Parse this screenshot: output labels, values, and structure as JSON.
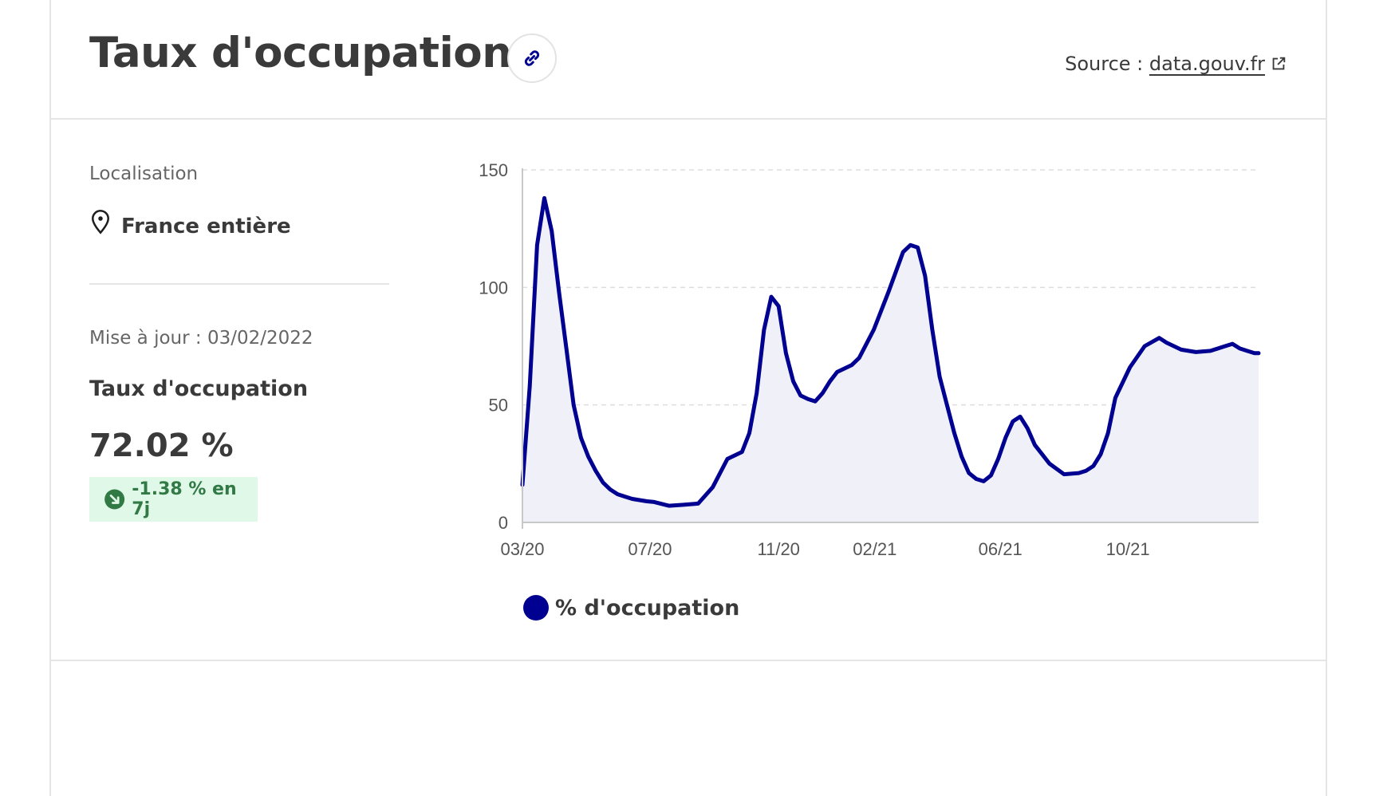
{
  "header": {
    "title": "Taux d'occupation",
    "source_prefix": "Source :",
    "source_link": "data.gouv.fr"
  },
  "sidebar": {
    "location_label": "Localisation",
    "location_value": "France entière",
    "update_text": "Mise à jour : 03/02/2022",
    "metric_name": "Taux d'occupation",
    "metric_value": "72.02 %",
    "trend_text": "-1.38 % en 7j"
  },
  "icons": {
    "link": "link-icon",
    "external": "external-link-icon",
    "location": "map-pin-icon",
    "trend": "arrow-down-right-circle-icon"
  },
  "colors": {
    "series": "#000091",
    "area": "#eff0f8",
    "trend_bg": "#e0f8e8",
    "trend_fg": "#327a45"
  },
  "chart_data": {
    "type": "area",
    "title": "",
    "xlabel": "",
    "ylabel": "",
    "ylim": [
      0,
      150
    ],
    "yticks": [
      0,
      50,
      100,
      150
    ],
    "xticks": [
      "03/20",
      "07/20",
      "11/20",
      "02/21",
      "06/21",
      "10/21"
    ],
    "grid": "horizontal dashed",
    "legend": "bottom",
    "series": [
      {
        "name": "% d'occupation",
        "x": [
          "2020-03-01",
          "2020-03-08",
          "2020-03-15",
          "2020-03-22",
          "2020-03-29",
          "2020-04-05",
          "2020-04-12",
          "2020-04-19",
          "2020-04-26",
          "2020-05-03",
          "2020-05-10",
          "2020-05-17",
          "2020-05-24",
          "2020-05-31",
          "2020-06-07",
          "2020-06-14",
          "2020-06-21",
          "2020-06-28",
          "2020-07-05",
          "2020-07-19",
          "2020-08-02",
          "2020-08-16",
          "2020-08-30",
          "2020-09-13",
          "2020-09-27",
          "2020-10-04",
          "2020-10-11",
          "2020-10-18",
          "2020-10-25",
          "2020-11-01",
          "2020-11-08",
          "2020-11-15",
          "2020-11-22",
          "2020-11-29",
          "2020-12-06",
          "2020-12-13",
          "2020-12-20",
          "2020-12-27",
          "2021-01-03",
          "2021-01-10",
          "2021-01-17",
          "2021-01-31",
          "2021-02-14",
          "2021-02-28",
          "2021-03-07",
          "2021-03-14",
          "2021-03-21",
          "2021-03-28",
          "2021-04-04",
          "2021-04-11",
          "2021-04-18",
          "2021-04-25",
          "2021-05-02",
          "2021-05-09",
          "2021-05-16",
          "2021-05-23",
          "2021-05-30",
          "2021-06-06",
          "2021-06-13",
          "2021-06-20",
          "2021-06-27",
          "2021-07-04",
          "2021-07-18",
          "2021-08-01",
          "2021-08-15",
          "2021-08-22",
          "2021-08-29",
          "2021-09-05",
          "2021-09-12",
          "2021-09-19",
          "2021-10-03",
          "2021-10-17",
          "2021-10-31",
          "2021-11-07",
          "2021-11-21",
          "2021-12-05",
          "2021-12-19",
          "2022-01-02",
          "2022-01-09",
          "2022-01-16",
          "2022-01-23",
          "2022-01-30",
          "2022-02-03"
        ],
        "y": [
          16,
          58,
          118,
          138,
          124,
          98,
          74,
          50,
          36,
          28,
          22,
          17,
          14,
          12,
          11,
          10,
          9.5,
          9,
          8.7,
          7.1,
          7.5,
          8,
          15,
          27,
          30,
          38,
          55,
          82,
          96,
          92,
          72,
          60,
          54,
          52.5,
          51.5,
          55,
          60,
          64,
          65.5,
          67,
          70,
          82,
          98,
          115,
          118,
          117,
          105,
          82,
          62,
          50,
          38,
          28,
          21,
          18.5,
          17.5,
          20,
          27,
          36,
          43,
          45,
          40,
          33,
          25,
          20.5,
          21,
          22,
          24,
          29,
          38,
          53,
          66,
          75,
          78.5,
          76.5,
          73.5,
          72.5,
          73,
          75,
          76,
          74,
          73,
          72,
          72
        ]
      }
    ]
  }
}
